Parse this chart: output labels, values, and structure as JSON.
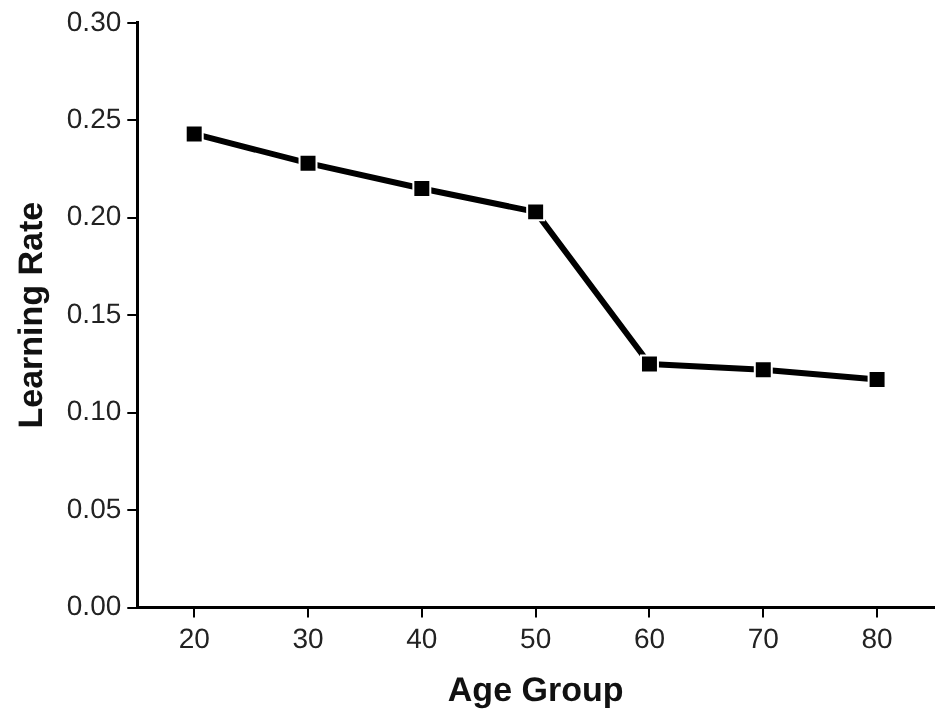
{
  "chart_data": {
    "type": "line",
    "xlabel": "Age Group",
    "ylabel": "Learning Rate",
    "x": [
      20,
      30,
      40,
      50,
      60,
      70,
      80
    ],
    "series": [
      {
        "color": "#000000",
        "values": [
          0.243,
          0.228,
          0.215,
          0.203,
          0.125,
          0.122,
          0.117
        ]
      }
    ],
    "xlim": [
      15,
      85
    ],
    "xticks": [
      20,
      30,
      40,
      50,
      60,
      70,
      80
    ],
    "ylim": [
      0,
      0.3
    ],
    "yticks": [
      {
        "value": 0,
        "label": "0.00"
      },
      {
        "value": 0.05,
        "label": "0.05"
      },
      {
        "value": 0.1,
        "label": "0.10"
      },
      {
        "value": 0.15,
        "label": "0.15"
      },
      {
        "value": 0.2,
        "label": "0.20"
      },
      {
        "value": 0.25,
        "label": "0.25"
      },
      {
        "value": 0.3,
        "label": "0.30"
      }
    ],
    "grid": false,
    "legend": false,
    "marker": "square",
    "line_style": "solid"
  }
}
